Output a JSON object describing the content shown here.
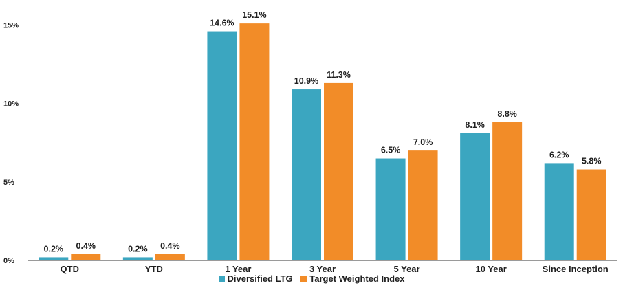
{
  "chart_data": {
    "type": "bar",
    "categories": [
      "QTD",
      "YTD",
      "1 Year",
      "3 Year",
      "5 Year",
      "10 Year",
      "Since Inception"
    ],
    "series": [
      {
        "name": "Diversified LTG",
        "color": "#3ba6c0",
        "values": [
          0.2,
          0.2,
          14.6,
          10.9,
          6.5,
          8.1,
          6.2
        ],
        "labels": [
          "0.2%",
          "0.2%",
          "14.6%",
          "10.9%",
          "6.5%",
          "8.1%",
          "6.2%"
        ]
      },
      {
        "name": "Target Weighted Index",
        "color": "#f28c28",
        "values": [
          0.4,
          0.4,
          15.1,
          11.3,
          7.0,
          8.8,
          5.8
        ],
        "labels": [
          "0.4%",
          "0.4%",
          "15.1%",
          "11.3%",
          "7.0%",
          "8.8%",
          "5.8%"
        ]
      }
    ],
    "y_ticks": [
      {
        "value": 0,
        "label": "0%"
      },
      {
        "value": 5,
        "label": "5%"
      },
      {
        "value": 10,
        "label": "10%"
      },
      {
        "value": 15,
        "label": "15%"
      }
    ],
    "ylim": [
      0,
      16.2
    ],
    "grid": false,
    "legend_position": "bottom-center"
  }
}
